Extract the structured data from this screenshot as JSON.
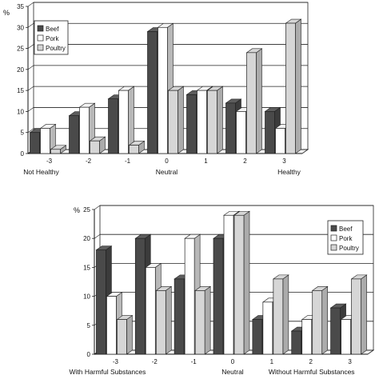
{
  "chart_data": [
    {
      "type": "bar",
      "y_unit": "%",
      "categories": [
        "-3",
        "-2",
        "-1",
        "0",
        "1",
        "2",
        "3"
      ],
      "category_endpoints": {
        "low": "Not Healthy",
        "mid": "Neutral",
        "high": "Healthy"
      },
      "ylim": [
        0,
        35
      ],
      "yticks": [
        0,
        5,
        10,
        15,
        20,
        25,
        30,
        35
      ],
      "grid": true,
      "legend_position": "top-left",
      "series": [
        {
          "name": "Beef",
          "values": [
            5,
            9,
            13,
            29,
            14,
            12,
            10
          ]
        },
        {
          "name": "Pork",
          "values": [
            6,
            11,
            15,
            30,
            15,
            10,
            6
          ]
        },
        {
          "name": "Poultry",
          "values": [
            1,
            3,
            2,
            15,
            15,
            24,
            31
          ]
        }
      ]
    },
    {
      "type": "bar",
      "y_unit": "%",
      "categories": [
        "-3",
        "-2",
        "-1",
        "0",
        "1",
        "2",
        "3"
      ],
      "category_endpoints": {
        "low": "With Harmful Substances",
        "mid": "Neutral",
        "high": "Without Harmful Substances"
      },
      "ylim": [
        0,
        25
      ],
      "yticks": [
        0,
        5,
        10,
        15,
        20,
        25
      ],
      "grid": true,
      "legend_position": "top-right",
      "series": [
        {
          "name": "Beef",
          "values": [
            18,
            20,
            13,
            20,
            6,
            4,
            8
          ]
        },
        {
          "name": "Pork",
          "values": [
            10,
            15,
            20,
            24,
            9,
            6,
            6
          ]
        },
        {
          "name": "Poultry",
          "values": [
            6,
            11,
            11,
            24,
            13,
            11,
            13
          ]
        }
      ]
    }
  ],
  "colors": {
    "Beef": "#4a4a4a",
    "Pork": "#ffffff",
    "Poultry": "#d6d6d6"
  }
}
